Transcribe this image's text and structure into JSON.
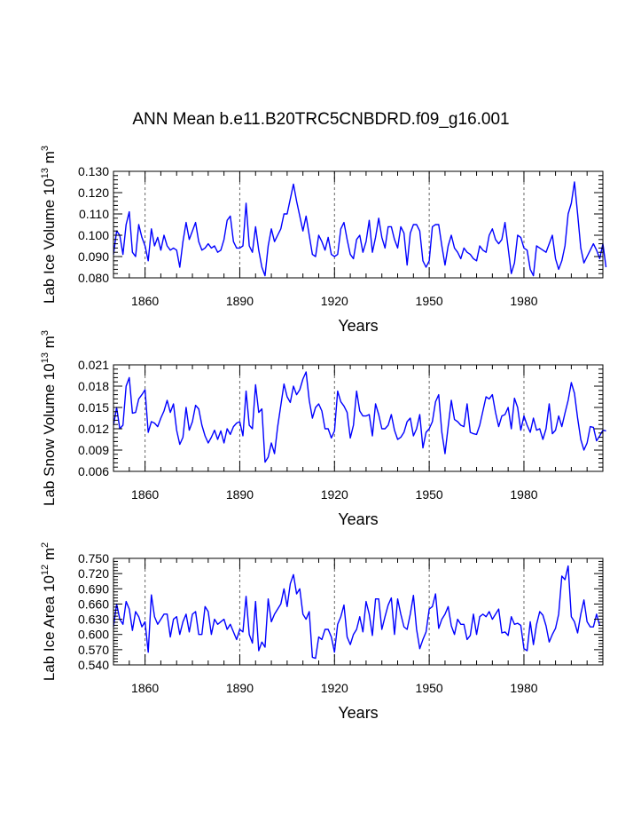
{
  "chart_data": {
    "type": "line",
    "title": "ANN Mean b.e11.B20TRC5CNBDRD.f09_g16.001",
    "x_start": 1850,
    "xlim": [
      1850,
      2005
    ],
    "xticks": [
      1860,
      1890,
      1920,
      1950,
      1980
    ],
    "line_color": "#0000ff",
    "panels": [
      {
        "id": "ice-volume",
        "ylabel": {
          "main": "Lab Ice Volume 10",
          "exp1": "13",
          "unit": " m",
          "exp2": "3"
        },
        "xlabel": "Years",
        "ylim": [
          0.08,
          0.13
        ],
        "yticks": [
          "0.080",
          "0.090",
          "0.100",
          "0.110",
          "0.120",
          "0.130"
        ],
        "values": [
          0.091,
          0.102,
          0.1,
          0.091,
          0.105,
          0.111,
          0.092,
          0.09,
          0.105,
          0.099,
          0.095,
          0.088,
          0.103,
          0.095,
          0.099,
          0.093,
          0.1,
          0.095,
          0.093,
          0.094,
          0.093,
          0.085,
          0.097,
          0.106,
          0.098,
          0.102,
          0.106,
          0.097,
          0.093,
          0.094,
          0.096,
          0.094,
          0.095,
          0.092,
          0.093,
          0.098,
          0.107,
          0.109,
          0.097,
          0.094,
          0.094,
          0.095,
          0.115,
          0.095,
          0.092,
          0.104,
          0.093,
          0.085,
          0.081,
          0.095,
          0.103,
          0.097,
          0.1,
          0.103,
          0.11,
          0.11,
          0.117,
          0.124,
          0.116,
          0.109,
          0.102,
          0.109,
          0.1,
          0.091,
          0.09,
          0.1,
          0.097,
          0.093,
          0.099,
          0.091,
          0.09,
          0.091,
          0.103,
          0.106,
          0.098,
          0.091,
          0.089,
          0.098,
          0.1,
          0.092,
          0.097,
          0.107,
          0.092,
          0.099,
          0.108,
          0.099,
          0.094,
          0.104,
          0.104,
          0.098,
          0.094,
          0.104,
          0.101,
          0.086,
          0.101,
          0.105,
          0.105,
          0.102,
          0.088,
          0.085,
          0.088,
          0.104,
          0.105,
          0.105,
          0.095,
          0.086,
          0.095,
          0.1,
          0.094,
          0.092,
          0.089,
          0.094,
          0.092,
          0.091,
          0.089,
          0.088,
          0.095,
          0.093,
          0.092,
          0.1,
          0.103,
          0.098,
          0.096,
          0.098,
          0.106,
          0.094,
          0.082,
          0.087,
          0.1,
          0.099,
          0.094,
          0.093,
          0.084,
          0.081,
          0.095,
          0.094,
          0.093,
          0.092,
          0.096,
          0.1,
          0.089,
          0.084,
          0.088,
          0.095,
          0.11,
          0.115,
          0.125,
          0.11,
          0.094,
          0.087,
          0.09,
          0.093,
          0.096,
          0.093,
          0.089,
          0.096,
          0.085
        ]
      },
      {
        "id": "snow-volume",
        "ylabel": {
          "main": "Lab Snow Volume 10",
          "exp1": "13",
          "unit": " m",
          "exp2": "3"
        },
        "xlabel": "Years",
        "ylim": [
          0.006,
          0.021
        ],
        "yticks": [
          "0.006",
          "0.009",
          "0.012",
          "0.015",
          "0.018",
          "0.021"
        ],
        "values": [
          0.0125,
          0.015,
          0.012,
          0.0125,
          0.018,
          0.0192,
          0.0142,
          0.0143,
          0.0162,
          0.0168,
          0.0175,
          0.0115,
          0.013,
          0.0128,
          0.0123,
          0.0135,
          0.0145,
          0.016,
          0.0143,
          0.0155,
          0.0118,
          0.0098,
          0.0108,
          0.015,
          0.0118,
          0.013,
          0.0153,
          0.0148,
          0.0125,
          0.011,
          0.01,
          0.0108,
          0.0118,
          0.0105,
          0.0117,
          0.01,
          0.012,
          0.0112,
          0.0123,
          0.0128,
          0.013,
          0.011,
          0.0173,
          0.0125,
          0.012,
          0.0182,
          0.0143,
          0.0148,
          0.0073,
          0.008,
          0.01,
          0.0085,
          0.0123,
          0.0153,
          0.0183,
          0.0165,
          0.0157,
          0.018,
          0.0168,
          0.0175,
          0.019,
          0.02,
          0.016,
          0.0135,
          0.015,
          0.0155,
          0.0145,
          0.012,
          0.012,
          0.0107,
          0.0117,
          0.0173,
          0.0158,
          0.0152,
          0.0143,
          0.0107,
          0.0125,
          0.0173,
          0.0145,
          0.0138,
          0.0138,
          0.014,
          0.011,
          0.0155,
          0.014,
          0.012,
          0.012,
          0.0125,
          0.014,
          0.0118,
          0.0105,
          0.0108,
          0.0115,
          0.013,
          0.0135,
          0.011,
          0.012,
          0.014,
          0.0093,
          0.0115,
          0.012,
          0.013,
          0.0158,
          0.0168,
          0.0115,
          0.0085,
          0.0123,
          0.016,
          0.0133,
          0.013,
          0.0125,
          0.0123,
          0.0155,
          0.0115,
          0.0113,
          0.0112,
          0.0125,
          0.0145,
          0.0165,
          0.0162,
          0.0168,
          0.0143,
          0.0123,
          0.0138,
          0.014,
          0.015,
          0.012,
          0.0163,
          0.015,
          0.0118,
          0.0138,
          0.0125,
          0.0115,
          0.0135,
          0.0118,
          0.012,
          0.0105,
          0.012,
          0.0155,
          0.0113,
          0.0118,
          0.0138,
          0.0123,
          0.0142,
          0.016,
          0.0185,
          0.017,
          0.0135,
          0.0105,
          0.009,
          0.01,
          0.0123,
          0.0122,
          0.0103,
          0.011,
          0.0118,
          0.0117
        ]
      },
      {
        "id": "ice-area",
        "ylabel": {
          "main": "Lab Ice Area 10",
          "exp1": "12",
          "unit": " m",
          "exp2": "2"
        },
        "xlabel": "Years",
        "ylim": [
          0.54,
          0.75
        ],
        "yticks": [
          "0.540",
          "0.570",
          "0.600",
          "0.630",
          "0.660",
          "0.690",
          "0.720",
          "0.750"
        ],
        "values": [
          0.615,
          0.66,
          0.63,
          0.62,
          0.665,
          0.65,
          0.608,
          0.645,
          0.635,
          0.615,
          0.625,
          0.565,
          0.678,
          0.635,
          0.62,
          0.63,
          0.64,
          0.64,
          0.595,
          0.63,
          0.635,
          0.6,
          0.625,
          0.64,
          0.605,
          0.64,
          0.645,
          0.6,
          0.6,
          0.655,
          0.645,
          0.6,
          0.63,
          0.62,
          0.625,
          0.63,
          0.61,
          0.62,
          0.605,
          0.59,
          0.61,
          0.605,
          0.675,
          0.6,
          0.583,
          0.665,
          0.568,
          0.585,
          0.575,
          0.67,
          0.625,
          0.64,
          0.65,
          0.66,
          0.69,
          0.655,
          0.7,
          0.718,
          0.68,
          0.69,
          0.64,
          0.63,
          0.645,
          0.555,
          0.553,
          0.595,
          0.59,
          0.61,
          0.61,
          0.595,
          0.565,
          0.62,
          0.635,
          0.658,
          0.595,
          0.58,
          0.6,
          0.61,
          0.635,
          0.605,
          0.665,
          0.64,
          0.598,
          0.67,
          0.67,
          0.61,
          0.635,
          0.658,
          0.672,
          0.6,
          0.67,
          0.64,
          0.615,
          0.61,
          0.64,
          0.677,
          0.61,
          0.572,
          0.59,
          0.605,
          0.65,
          0.655,
          0.68,
          0.612,
          0.63,
          0.64,
          0.655,
          0.617,
          0.6,
          0.63,
          0.62,
          0.62,
          0.59,
          0.598,
          0.64,
          0.6,
          0.635,
          0.64,
          0.635,
          0.645,
          0.63,
          0.64,
          0.65,
          0.603,
          0.605,
          0.598,
          0.635,
          0.62,
          0.622,
          0.618,
          0.572,
          0.568,
          0.625,
          0.58,
          0.62,
          0.645,
          0.638,
          0.617,
          0.585,
          0.6,
          0.612,
          0.64,
          0.715,
          0.708,
          0.735,
          0.635,
          0.625,
          0.603,
          0.64,
          0.668,
          0.625,
          0.615,
          0.615,
          0.64,
          0.617
        ]
      }
    ]
  }
}
